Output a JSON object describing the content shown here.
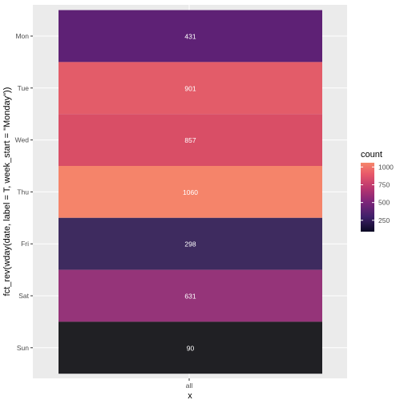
{
  "chart_data": {
    "type": "heatmap",
    "x_categories": [
      "all"
    ],
    "y_categories": [
      "Mon",
      "Tue",
      "Wed",
      "Thu",
      "Fri",
      "Sat",
      "Sun"
    ],
    "values": [
      {
        "x": "all",
        "y": "Mon",
        "value": 431,
        "color": "#5E2175"
      },
      {
        "x": "all",
        "y": "Tue",
        "value": 901,
        "color": "#E35C69"
      },
      {
        "x": "all",
        "y": "Wed",
        "value": 857,
        "color": "#D94E66"
      },
      {
        "x": "all",
        "y": "Thu",
        "value": 1060,
        "color": "#F5846A"
      },
      {
        "x": "all",
        "y": "Fri",
        "value": 298,
        "color": "#3E2B5F"
      },
      {
        "x": "all",
        "y": "Sat",
        "value": 631,
        "color": "#953479"
      },
      {
        "x": "all",
        "y": "Sun",
        "value": 90,
        "color": "#202024"
      }
    ],
    "xlabel": "x",
    "ylabel": "fct_rev(wday(date, label = T, week_start = \"Monday\"))",
    "legend": {
      "title": "count",
      "placement": "right",
      "ticks": [
        250,
        500,
        750,
        1000
      ],
      "range": [
        90,
        1060
      ],
      "gradient": [
        {
          "value": 90,
          "color": "#0b0924"
        },
        {
          "value": 300,
          "color": "#40206a"
        },
        {
          "value": 500,
          "color": "#7b2479"
        },
        {
          "value": 700,
          "color": "#b8366f"
        },
        {
          "value": 900,
          "color": "#e8586a"
        },
        {
          "value": 1060,
          "color": "#f6866a"
        }
      ]
    },
    "grid": true,
    "panel_background": "#EBEBEB",
    "grid_color": "#FFFFFF",
    "label_color": "#FFFFFF"
  }
}
